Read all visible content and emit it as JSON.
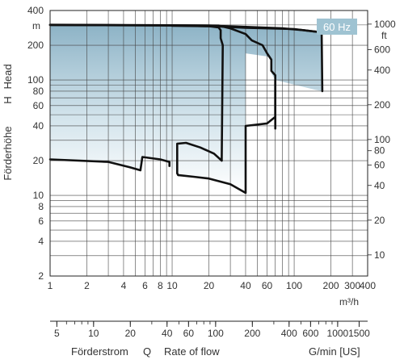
{
  "chart_data": {
    "type": "area",
    "title": "",
    "badge": "60 Hz",
    "x_axis": {
      "scale": "log",
      "range": [
        1,
        400
      ],
      "unit": "m³/h",
      "ticks": [
        1,
        2,
        4,
        6,
        8,
        10,
        20,
        40,
        60,
        100,
        200,
        300,
        400
      ],
      "tick_labels": [
        "1",
        "2",
        "4",
        "6",
        "8",
        "10",
        "20",
        "40",
        "60",
        "100",
        "200",
        "300",
        "400"
      ]
    },
    "y_axis_left": {
      "scale": "log",
      "range": [
        2,
        400
      ],
      "unit": "m",
      "ticks": [
        2,
        4,
        6,
        8,
        10,
        20,
        40,
        60,
        80,
        100,
        200,
        400
      ],
      "tick_labels": [
        "2",
        "4",
        "6",
        "8",
        "10",
        "20",
        "40",
        "60",
        "80",
        "100",
        "200",
        "400"
      ],
      "label_de": "Förderhöhe",
      "label_h": "H",
      "label_en": "Head"
    },
    "y_axis_right": {
      "scale": "log",
      "unit": "ft",
      "ticks": [
        10,
        20,
        40,
        60,
        80,
        100,
        200,
        400,
        600,
        1000
      ],
      "tick_labels": [
        "10",
        "20",
        "40",
        "60",
        "80",
        "100",
        "200",
        "400",
        "600",
        "1000"
      ]
    },
    "secondary_x_axis": {
      "scale": "log",
      "unit": "G/min [US]",
      "ticks": [
        5,
        10,
        20,
        40,
        60,
        100,
        200,
        400,
        600,
        1000,
        1500
      ],
      "tick_labels": [
        "5",
        "10",
        "20",
        "40",
        "60",
        "100",
        "200",
        "400",
        "600",
        "1000",
        "1500"
      ]
    },
    "flow_label": {
      "de": "Förderstrom",
      "q": "Q",
      "en": "Rate of flow"
    },
    "envelope": [
      [
        1,
        300
      ],
      [
        10,
        297
      ],
      [
        24,
        295
      ],
      [
        40,
        290
      ],
      [
        70,
        285
      ],
      [
        100,
        275
      ],
      [
        160,
        260
      ],
      [
        170,
        254
      ],
      [
        170,
        80
      ],
      [
        150,
        82
      ],
      [
        70,
        100
      ],
      [
        65,
        115
      ],
      [
        65,
        150
      ],
      [
        60,
        160
      ],
      [
        40,
        170
      ],
      [
        40,
        185
      ],
      [
        40,
        200
      ],
      [
        40,
        10.5
      ],
      [
        30,
        12.5
      ],
      [
        20,
        14
      ],
      [
        15,
        14.5
      ],
      [
        11.2,
        15
      ],
      [
        11,
        15.5
      ],
      [
        9.5,
        18
      ],
      [
        9.5,
        19.5
      ],
      [
        8,
        20.5
      ],
      [
        6.5,
        21.5
      ],
      [
        5.7,
        21.5
      ],
      [
        5.5,
        16.5
      ],
      [
        4.5,
        17.5
      ],
      [
        3,
        19
      ],
      [
        1.5,
        20
      ],
      [
        1,
        20.5
      ]
    ],
    "curves": [
      {
        "points": [
          [
            1,
            300
          ],
          [
            10,
            297
          ],
          [
            20,
            292
          ],
          [
            24,
            285
          ],
          [
            25,
            270
          ],
          [
            25,
            230
          ],
          [
            26,
            200
          ],
          [
            25.5,
            20
          ]
        ]
      },
      {
        "points": [
          [
            1,
            301
          ],
          [
            10,
            298
          ],
          [
            24,
            296
          ],
          [
            30,
            280
          ],
          [
            40,
            250
          ],
          [
            45,
            220
          ],
          [
            55,
            200
          ],
          [
            60,
            170
          ],
          [
            65,
            150
          ],
          [
            65,
            120
          ],
          [
            70,
            110
          ],
          [
            70,
            38
          ]
        ]
      },
      {
        "points": [
          [
            1,
            300
          ],
          [
            20,
            296
          ],
          [
            30,
            292
          ],
          [
            80,
            280
          ],
          [
            120,
            270
          ],
          [
            160,
            260
          ],
          [
            168,
            250
          ],
          [
            170,
            80
          ]
        ]
      },
      {
        "points": [
          [
            10,
            295
          ],
          [
            20,
            292
          ],
          [
            25,
            290
          ],
          [
            40,
            283
          ],
          [
            100,
            276
          ],
          [
            160,
            260
          ]
        ]
      },
      {
        "points": [
          [
            11.2,
            15
          ],
          [
            11,
            15.5
          ],
          [
            11,
            28
          ],
          [
            13,
            28.5
          ],
          [
            17,
            26
          ],
          [
            22,
            23
          ],
          [
            25.5,
            20
          ]
        ]
      },
      {
        "points": [
          [
            1,
            20.5
          ],
          [
            3,
            19.5
          ],
          [
            4.5,
            17.5
          ],
          [
            5.5,
            16.5
          ],
          [
            5.7,
            21.5
          ],
          [
            8,
            20.5
          ],
          [
            9.5,
            19.5
          ],
          [
            9.5,
            18
          ]
        ]
      },
      {
        "points": [
          [
            11.2,
            15
          ],
          [
            15,
            14.5
          ],
          [
            20,
            14
          ],
          [
            30,
            12.5
          ],
          [
            40,
            10.5
          ],
          [
            40,
            40
          ],
          [
            60,
            42
          ],
          [
            70,
            48
          ],
          [
            70,
            100
          ]
        ]
      }
    ],
    "grid": true,
    "legend": "none"
  }
}
